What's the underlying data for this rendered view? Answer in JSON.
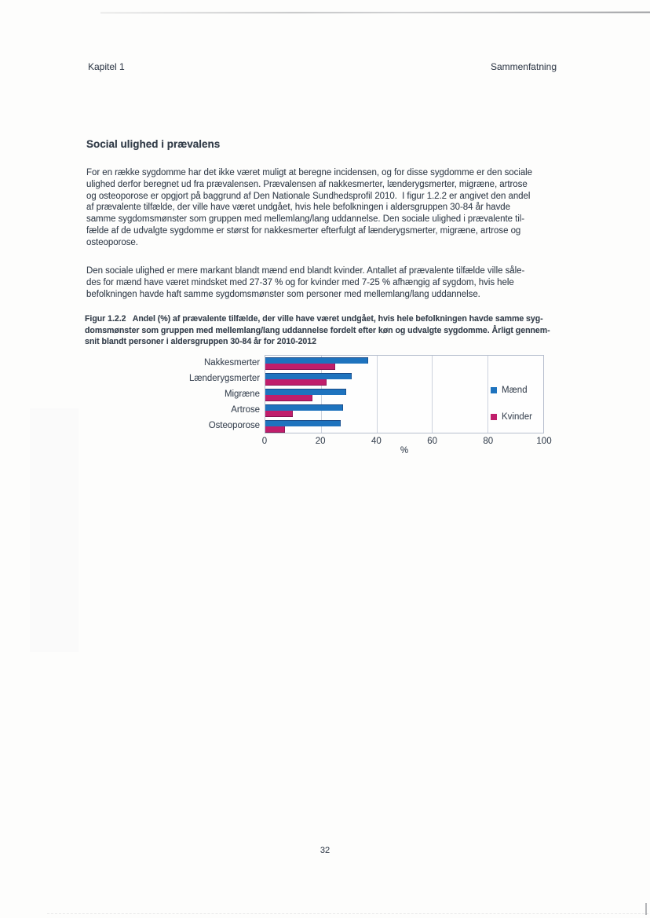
{
  "page": {
    "header": {
      "left": "Kapitel 1",
      "right": "Sammenfatning"
    },
    "section_title": "Social ulighed i prævalens",
    "paragraph1": "For en række sygdomme har det ikke været muligt at beregne incidensen, og for disse sygdomme er den sociale\nulighed derfor beregnet ud fra prævalensen. Prævalensen af nakkesmerter, lænderygsmerter, migræne, artrose\nog osteoporose er opgjort på baggrund af Den Nationale Sundhedsprofil 2010.  I figur 1.2.2 er angivet den andel\naf prævalente tilfælde, der ville have været undgået, hvis hele befolkningen i aldersgruppen 30-84 år havde\nsamme sygdomsmønster som gruppen med mellemlang/lang uddannelse. Den sociale ulighed i prævalente til-\nfælde af de udvalgte sygdomme er størst for nakkesmerter efterfulgt af lænderygsmerter, migræne, artrose og\nosteoporose.",
    "paragraph2": "Den sociale ulighed er mere markant blandt mænd end blandt kvinder. Antallet af prævalente tilfælde ville såle-\ndes for mænd have været mindsket med 27-37 % og for kvinder med 7-25 % afhængig af sygdom, hvis hele\nbefolkningen havde haft samme sygdomsmønster som personer med mellemlang/lang uddannelse.",
    "figure_caption": "Figur 1.2.2   Andel (%) af prævalente tilfælde, der ville have været undgået, hvis hele befolkningen havde samme syg-\ndomsmønster som gruppen med mellemlang/lang uddannelse fordelt efter køn og udvalgte sygdomme. Årligt gennem-\nsnit blandt personer i aldersgruppen 30-84 år for 2010-2012",
    "page_number": "32"
  },
  "chart_data": {
    "type": "bar",
    "orientation": "horizontal",
    "title": "",
    "categories": [
      "Nakkesmerter",
      "Lænderygsmerter",
      "Migræne",
      "Artrose",
      "Osteoporose"
    ],
    "series": [
      {
        "name": "Mænd",
        "color": "#1E73BE",
        "values": [
          37,
          31,
          29,
          28,
          27
        ]
      },
      {
        "name": "Kvinder",
        "color": "#C01E6B",
        "values": [
          25,
          22,
          17,
          10,
          7
        ]
      }
    ],
    "xlabel": "%",
    "xlim": [
      0,
      100
    ],
    "xticks": [
      0,
      20,
      40,
      60,
      80,
      100
    ],
    "grid": true,
    "legend_position": "inside-right",
    "grid_color": "#ccd2dd",
    "frame_color": "#b7bfce"
  }
}
